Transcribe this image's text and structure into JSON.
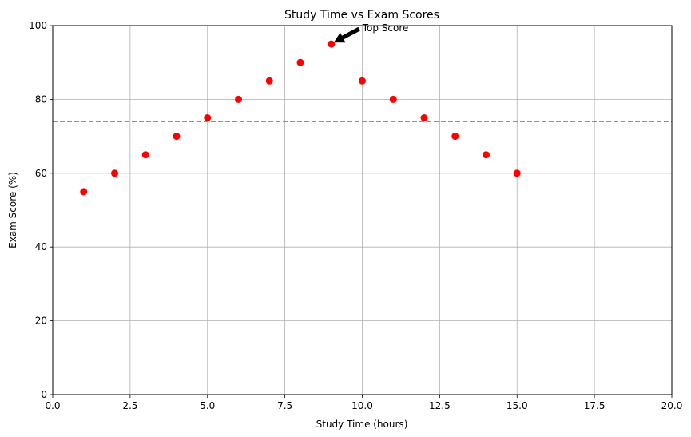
{
  "chart_data": {
    "type": "scatter",
    "title": "Study Time vs Exam Scores",
    "xlabel": "Study Time (hours)",
    "ylabel": "Exam Score (%)",
    "xlim": [
      0,
      20
    ],
    "ylim": [
      0,
      100
    ],
    "xticks": [
      "0.0",
      "2.5",
      "5.0",
      "7.5",
      "10.0",
      "12.5",
      "15.0",
      "17.5",
      "20.0"
    ],
    "yticks": [
      "0",
      "20",
      "40",
      "60",
      "80",
      "100"
    ],
    "x": [
      1,
      2,
      3,
      4,
      5,
      6,
      7,
      8,
      9,
      10,
      11,
      12,
      13,
      14,
      15
    ],
    "y": [
      55,
      60,
      65,
      70,
      75,
      80,
      85,
      90,
      95,
      85,
      80,
      75,
      70,
      65,
      60
    ],
    "point_color": "#ff0000",
    "reference_line": {
      "y": 74,
      "style": "dashed",
      "color": "#808080"
    },
    "annotation": {
      "text": "Top Score",
      "x": 9,
      "y": 95,
      "arrow_color": "#000000"
    },
    "grid": true,
    "legend": "none"
  }
}
